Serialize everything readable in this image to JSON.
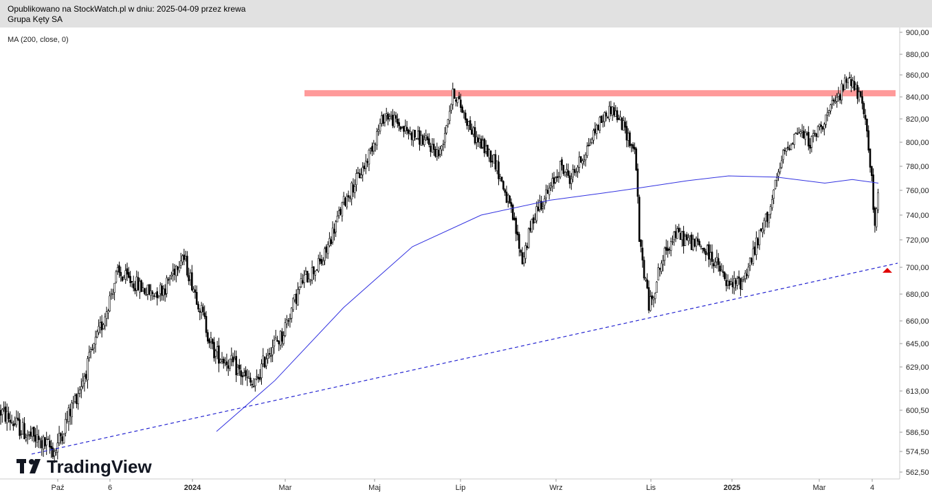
{
  "header": {
    "line1": "Opublikowano na StockWatch.pl w dniu: 2025-04-09 przez krewa",
    "line2": "Grupa Kęty SA"
  },
  "indicator_label": "MA (200, close, 0)",
  "watermark": "TradingView",
  "colors": {
    "candle": "#000000",
    "ma": "#3030e0",
    "trendline": "#2020d0",
    "resistance": "#ff9a9a",
    "marker": "#e00000"
  },
  "chart_data": {
    "type": "candlestick",
    "yticks": [
      "900,00",
      "880,00",
      "860,00",
      "840,00",
      "820,00",
      "800,00",
      "780,00",
      "760,00",
      "740,00",
      "720,00",
      "700,00",
      "680,00",
      "660,00",
      "645,00",
      "629,00",
      "613,00",
      "600,50",
      "586,50",
      "574,50",
      "562,50"
    ],
    "xticks": [
      {
        "label": "Paź",
        "bold": false
      },
      {
        "label": "6",
        "bold": false
      },
      {
        "label": "2024",
        "bold": true
      },
      {
        "label": "Mar",
        "bold": false
      },
      {
        "label": "Maj",
        "bold": false
      },
      {
        "label": "Lip",
        "bold": false
      },
      {
        "label": "Wrz",
        "bold": false
      },
      {
        "label": "Lis",
        "bold": false
      },
      {
        "label": "2025",
        "bold": true
      },
      {
        "label": "Mar",
        "bold": false
      },
      {
        "label": "4",
        "bold": false
      }
    ],
    "price_path": [
      [
        0,
        600
      ],
      [
        40,
        585
      ],
      [
        80,
        575
      ],
      [
        120,
        620
      ],
      [
        150,
        660
      ],
      [
        170,
        695
      ],
      [
        190,
        690
      ],
      [
        220,
        680
      ],
      [
        240,
        685
      ],
      [
        265,
        710
      ],
      [
        285,
        680
      ],
      [
        310,
        640
      ],
      [
        340,
        630
      ],
      [
        370,
        615
      ],
      [
        390,
        640
      ],
      [
        410,
        650
      ],
      [
        440,
        690
      ],
      [
        470,
        705
      ],
      [
        500,
        750
      ],
      [
        530,
        780
      ],
      [
        560,
        825
      ],
      [
        590,
        810
      ],
      [
        620,
        800
      ],
      [
        640,
        790
      ],
      [
        660,
        845
      ],
      [
        690,
        805
      ],
      [
        720,
        785
      ],
      [
        745,
        740
      ],
      [
        760,
        705
      ],
      [
        780,
        745
      ],
      [
        800,
        760
      ],
      [
        815,
        780
      ],
      [
        830,
        770
      ],
      [
        850,
        790
      ],
      [
        870,
        815
      ],
      [
        890,
        830
      ],
      [
        910,
        810
      ],
      [
        925,
        790
      ],
      [
        930,
        720
      ],
      [
        945,
        670
      ],
      [
        960,
        700
      ],
      [
        980,
        725
      ],
      [
        1000,
        720
      ],
      [
        1020,
        715
      ],
      [
        1040,
        705
      ],
      [
        1060,
        685
      ],
      [
        1080,
        690
      ],
      [
        1100,
        715
      ],
      [
        1120,
        745
      ],
      [
        1140,
        790
      ],
      [
        1160,
        810
      ],
      [
        1180,
        800
      ],
      [
        1200,
        820
      ],
      [
        1220,
        840
      ],
      [
        1235,
        860
      ],
      [
        1250,
        840
      ],
      [
        1262,
        810
      ],
      [
        1268,
        770
      ],
      [
        1272,
        730
      ],
      [
        1278,
        755
      ]
    ],
    "ma200": [
      [
        315,
        587
      ],
      [
        400,
        620
      ],
      [
        500,
        670
      ],
      [
        600,
        715
      ],
      [
        700,
        740
      ],
      [
        800,
        752
      ],
      [
        880,
        758
      ],
      [
        930,
        762
      ],
      [
        1000,
        768
      ],
      [
        1060,
        772
      ],
      [
        1130,
        771
      ],
      [
        1200,
        766
      ],
      [
        1240,
        769
      ],
      [
        1278,
        766
      ]
    ],
    "trendline": {
      "from": [
        46,
        573
      ],
      "to": [
        1306,
        703
      ]
    },
    "resistance_level": 843,
    "marker_level": 697
  }
}
